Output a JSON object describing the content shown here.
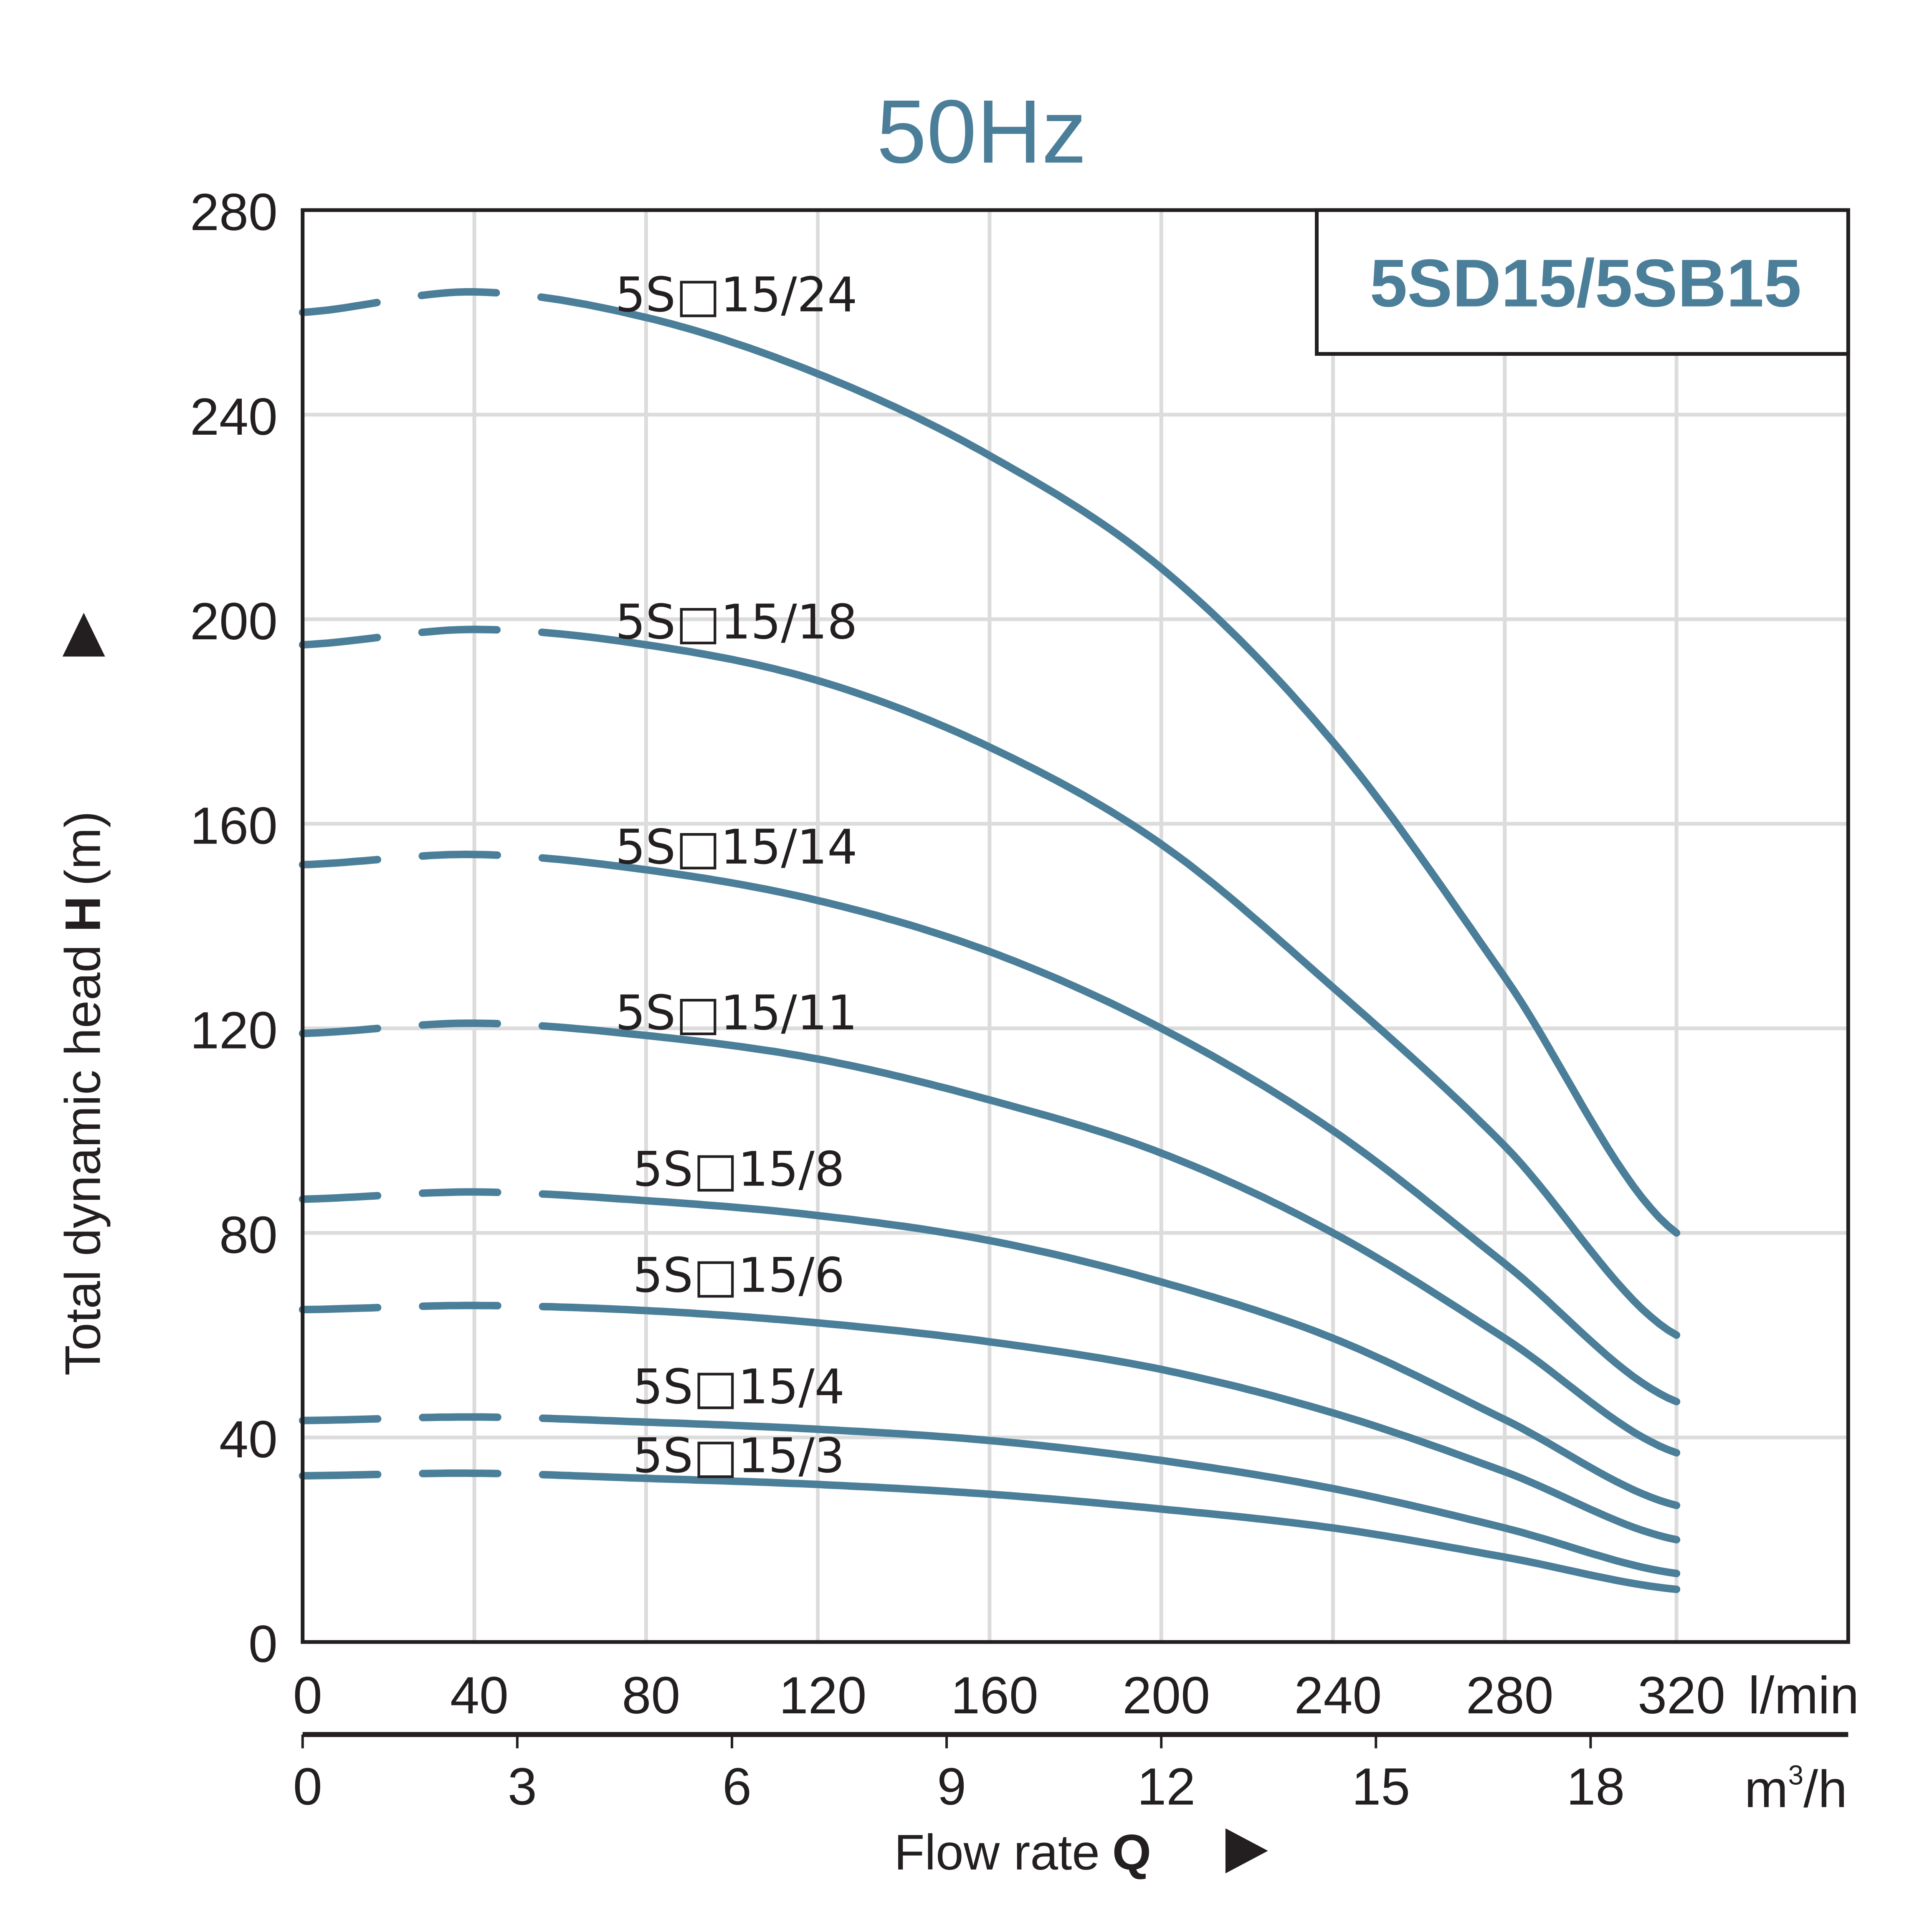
{
  "chart_data": {
    "type": "line",
    "title": "50Hz",
    "model_label": "5SD15/5SB15",
    "xlabel": "Flow rate",
    "xlabel_symbol": "Q",
    "ylabel": "Total dynamic head",
    "ylabel_symbol": "H",
    "ylabel_unit": "(m)",
    "x_unit_primary": "l/min",
    "x_unit_secondary": "m³/h",
    "x_unit_secondary_base": "m",
    "x_unit_secondary_sup": "3",
    "x_unit_secondary_tail": "/h",
    "xlim": [
      0,
      360
    ],
    "ylim": [
      0,
      280
    ],
    "grid": true,
    "x_ticks_lmin": [
      "0",
      "40",
      "80",
      "120",
      "160",
      "200",
      "240",
      "280",
      "320"
    ],
    "x_ticks_m3h": [
      "0",
      "3",
      "6",
      "9",
      "12",
      "15",
      "18"
    ],
    "y_ticks": [
      "0",
      "40",
      "80",
      "120",
      "160",
      "200",
      "240",
      "280"
    ],
    "dashed_until_x": 62,
    "x": [
      0,
      40,
      80,
      120,
      160,
      200,
      240,
      280,
      320
    ],
    "series": [
      {
        "name": "5S□15/24",
        "values": [
          260,
          264,
          259,
          248,
          232,
          210,
          176,
          130,
          80
        ]
      },
      {
        "name": "5S□15/18",
        "values": [
          195,
          198,
          195,
          188,
          175,
          156,
          128,
          97,
          60
        ]
      },
      {
        "name": "5S□15/14",
        "values": [
          152,
          154,
          151,
          145,
          135,
          120,
          100,
          74,
          47
        ]
      },
      {
        "name": "5S□15/11",
        "values": [
          119,
          121,
          118.6,
          114,
          106,
          95.6,
          80,
          59.4,
          37
        ]
      },
      {
        "name": "5S□15/8",
        "values": [
          86.6,
          88,
          86.3,
          83.4,
          78.5,
          70.4,
          59.4,
          43.5,
          26.7
        ]
      },
      {
        "name": "5S□15/6",
        "values": [
          65,
          65.8,
          64.8,
          62.4,
          58.7,
          53.3,
          44.8,
          33.3,
          20
        ]
      },
      {
        "name": "5S□15/4",
        "values": [
          43.3,
          44,
          43,
          41.6,
          39.4,
          35.5,
          30,
          22.3,
          13.4
        ]
      },
      {
        "name": "5S□15/3",
        "values": [
          32.5,
          33,
          32,
          30.8,
          28.9,
          26,
          22.3,
          16.6,
          10.3
        ]
      }
    ],
    "colors": {
      "curve": "#4b7f99",
      "grid": "#dcdcdc",
      "axis": "#231f20",
      "title": "#4b7f99"
    }
  }
}
